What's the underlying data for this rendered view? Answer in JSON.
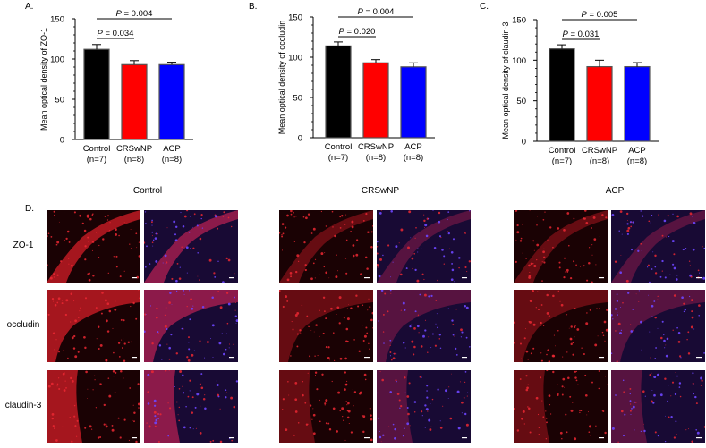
{
  "colors": {
    "control": "#000000",
    "crswnp": "#ff0000",
    "acp": "#0000ff",
    "bar_edge": "#555555"
  },
  "chart_data": [
    {
      "type": "bar",
      "panel": "A.",
      "ylabel": "Mean optical density of ZO-1",
      "ylim": [
        0,
        150
      ],
      "yticks": [
        "0",
        "50",
        "100",
        "150"
      ],
      "categories": [
        "Control",
        "CRSwNP",
        "ACP"
      ],
      "category_ns": [
        "(n=7)",
        "(n=8)",
        "(n=8)"
      ],
      "values": [
        112,
        93,
        93
      ],
      "errors": [
        6,
        5,
        3
      ],
      "comparisons": [
        {
          "from": 0,
          "to": 1,
          "p_label": "P",
          "p_text": " = 0.034"
        },
        {
          "from": 0,
          "to": 2,
          "p_label": "P",
          "p_text": " = 0.004"
        }
      ]
    },
    {
      "type": "bar",
      "panel": "B.",
      "ylabel": "Mean optical density of occludin",
      "ylim": [
        0,
        150
      ],
      "yticks": [
        "0",
        "50",
        "100",
        "150"
      ],
      "categories": [
        "Control",
        "CRSwNP",
        "ACP"
      ],
      "category_ns": [
        "(n=7)",
        "(n=8)",
        "(n=8)"
      ],
      "values": [
        114,
        93,
        88
      ],
      "errors": [
        5,
        4,
        5
      ],
      "comparisons": [
        {
          "from": 0,
          "to": 1,
          "p_label": "P",
          "p_text": " = 0.020"
        },
        {
          "from": 0,
          "to": 2,
          "p_label": "P",
          "p_text": " = 0.004"
        }
      ]
    },
    {
      "type": "bar",
      "panel": "C.",
      "ylabel": "Mean optical density of claudin-3",
      "ylim": [
        0,
        150
      ],
      "yticks": [
        "0",
        "50",
        "100",
        "150"
      ],
      "categories": [
        "Control",
        "CRSwNP",
        "ACP"
      ],
      "category_ns": [
        "(n=7)",
        "(n=8)",
        "(n=8)"
      ],
      "values": [
        114,
        92,
        92
      ],
      "errors": [
        5,
        8,
        5
      ],
      "comparisons": [
        {
          "from": 0,
          "to": 1,
          "p_label": "P",
          "p_text": " = 0.031"
        },
        {
          "from": 0,
          "to": 2,
          "p_label": "P",
          "p_text": " = 0.005"
        }
      ]
    }
  ],
  "microscopy": {
    "panel": "D.",
    "columns": [
      "Control",
      "CRSwNP",
      "ACP"
    ],
    "rows": [
      "ZO-1",
      "occludin",
      "claudin-3"
    ]
  }
}
